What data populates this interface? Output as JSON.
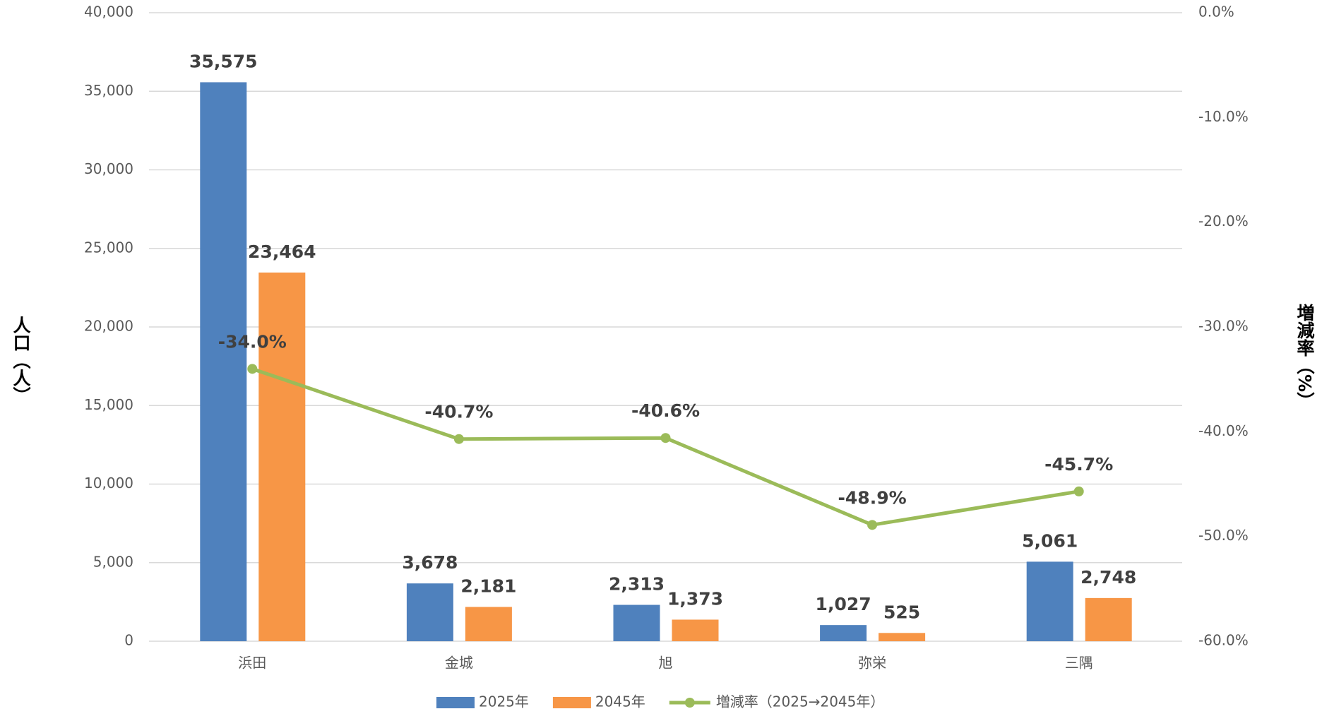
{
  "chart_data": {
    "type": "bar_line",
    "categories": [
      "浜田",
      "金城",
      "旭",
      "弥栄",
      "三隅"
    ],
    "series": [
      {
        "name": "2025年",
        "color": "#4f81bd",
        "type": "bar",
        "values": [
          35575,
          3678,
          2313,
          1027,
          5061
        ],
        "value_labels": [
          "35,575",
          "3,678",
          "2,313",
          "1,027",
          "5,061"
        ]
      },
      {
        "name": "2045年",
        "color": "#f79646",
        "type": "bar",
        "values": [
          23464,
          2181,
          1373,
          525,
          2748
        ],
        "value_labels": [
          "23,464",
          "2,181",
          "1,373",
          "525",
          "2,748"
        ]
      },
      {
        "name": "増減率（2025→2045年）",
        "color": "#9bbb59",
        "type": "line",
        "axis": "y2",
        "values": [
          -34.0,
          -40.7,
          -40.6,
          -48.9,
          -45.7
        ],
        "value_labels": [
          "-34.0%",
          "-40.7%",
          "-40.6%",
          "-48.9%",
          "-45.7%"
        ]
      }
    ],
    "ylabel": "人口（人）",
    "y2label": "増減率（%）",
    "ylim": [
      0,
      40000
    ],
    "yticks": [
      0,
      {
        "value": 5000,
        "label": "5,000"
      },
      {
        "value": 10000,
        "label": "10,000"
      },
      {
        "value": 15000,
        "label": "15,000"
      },
      {
        "value": 20000,
        "label": "20,000"
      },
      {
        "value": 25000,
        "label": "25,000"
      },
      {
        "value": 30000,
        "label": "30,000"
      },
      {
        "value": 35000,
        "label": "35,000"
      },
      {
        "value": 40000,
        "label": "40,000"
      }
    ],
    "y2lim": [
      -60,
      0
    ],
    "y2ticks": [
      {
        "value": -60,
        "label": "-60.0%"
      },
      {
        "value": -50,
        "label": "-50.0%"
      },
      {
        "value": -40,
        "label": "-40.0%"
      },
      {
        "value": -30,
        "label": "-30.0%"
      },
      {
        "value": -20,
        "label": "-20.0%"
      },
      {
        "value": -10,
        "label": "-10.0%"
      },
      {
        "value": 0,
        "label": "0.0%"
      }
    ],
    "grid": true,
    "legend": "bottom"
  }
}
